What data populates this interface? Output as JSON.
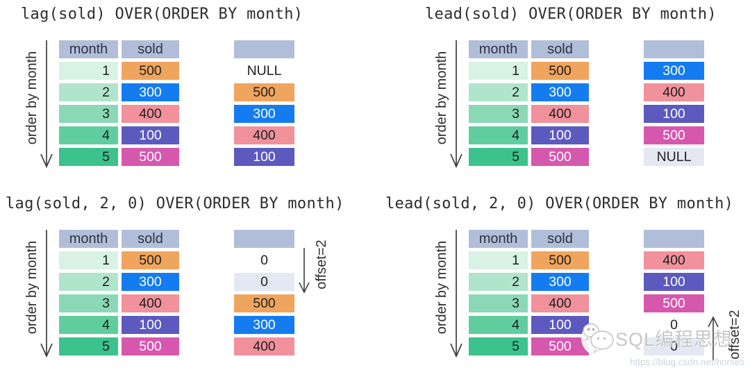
{
  "palette": {
    "header_bg": "#b1bed9",
    "text_dark": "#1f1f1f",
    "text_white": "#ffffff",
    "arrow": "#3d3d3d",
    "green_1": "#d8f2e4",
    "green_2": "#b0e5cb",
    "green_3": "#8ad8b5",
    "green_4": "#60cd9e",
    "green_5": "#3cc28c",
    "orange": "#f0a55e",
    "blue": "#147cf0",
    "pink": "#f0919c",
    "indigo": "#5c5abe",
    "magenta": "#d657ae",
    "null_bg": "#e3e8f3",
    "plain": "#ffffff"
  },
  "quadrants": [
    {
      "title": "lag(sold) OVER(ORDER BY month)",
      "order_label": "order by month",
      "headers": [
        "month",
        "sold"
      ],
      "rows": [
        {
          "month": "1",
          "month_bg": "green_1",
          "sold": "500",
          "sold_bg": "orange",
          "sold_fg": "dark"
        },
        {
          "month": "2",
          "month_bg": "green_2",
          "sold": "300",
          "sold_bg": "blue",
          "sold_fg": "light"
        },
        {
          "month": "3",
          "month_bg": "green_3",
          "sold": "400",
          "sold_bg": "pink",
          "sold_fg": "dark"
        },
        {
          "month": "4",
          "month_bg": "green_4",
          "sold": "100",
          "sold_bg": "indigo",
          "sold_fg": "light"
        },
        {
          "month": "5",
          "month_bg": "green_5",
          "sold": "500",
          "sold_bg": "magenta",
          "sold_fg": "light"
        }
      ],
      "result": [
        {
          "text": "NULL",
          "bg": "plain",
          "fg": "dark"
        },
        {
          "text": "500",
          "bg": "orange",
          "fg": "dark"
        },
        {
          "text": "300",
          "bg": "blue",
          "fg": "light"
        },
        {
          "text": "400",
          "bg": "pink",
          "fg": "dark"
        },
        {
          "text": "100",
          "bg": "indigo",
          "fg": "light"
        }
      ],
      "offset": null
    },
    {
      "title": "lead(sold) OVER(ORDER BY month)",
      "order_label": "order by month",
      "headers": [
        "month",
        "sold"
      ],
      "rows": [
        {
          "month": "1",
          "month_bg": "green_1",
          "sold": "500",
          "sold_bg": "orange",
          "sold_fg": "dark"
        },
        {
          "month": "2",
          "month_bg": "green_2",
          "sold": "300",
          "sold_bg": "blue",
          "sold_fg": "light"
        },
        {
          "month": "3",
          "month_bg": "green_3",
          "sold": "400",
          "sold_bg": "pink",
          "sold_fg": "dark"
        },
        {
          "month": "4",
          "month_bg": "green_4",
          "sold": "100",
          "sold_bg": "indigo",
          "sold_fg": "light"
        },
        {
          "month": "5",
          "month_bg": "green_5",
          "sold": "500",
          "sold_bg": "magenta",
          "sold_fg": "light"
        }
      ],
      "result": [
        {
          "text": "300",
          "bg": "blue",
          "fg": "light"
        },
        {
          "text": "400",
          "bg": "pink",
          "fg": "dark"
        },
        {
          "text": "100",
          "bg": "indigo",
          "fg": "light"
        },
        {
          "text": "500",
          "bg": "magenta",
          "fg": "light"
        },
        {
          "text": "NULL",
          "bg": "null_bg",
          "fg": "dark"
        }
      ],
      "offset": null
    },
    {
      "title": "lag(sold, 2, 0) OVER(ORDER BY month)",
      "order_label": "order by month",
      "headers": [
        "month",
        "sold"
      ],
      "rows": [
        {
          "month": "1",
          "month_bg": "green_1",
          "sold": "500",
          "sold_bg": "orange",
          "sold_fg": "dark"
        },
        {
          "month": "2",
          "month_bg": "green_2",
          "sold": "300",
          "sold_bg": "blue",
          "sold_fg": "light"
        },
        {
          "month": "3",
          "month_bg": "green_3",
          "sold": "400",
          "sold_bg": "pink",
          "sold_fg": "dark"
        },
        {
          "month": "4",
          "month_bg": "green_4",
          "sold": "100",
          "sold_bg": "indigo",
          "sold_fg": "light"
        },
        {
          "month": "5",
          "month_bg": "green_5",
          "sold": "500",
          "sold_bg": "magenta",
          "sold_fg": "light"
        }
      ],
      "result": [
        {
          "text": "0",
          "bg": "plain",
          "fg": "dark"
        },
        {
          "text": "0",
          "bg": "null_bg",
          "fg": "dark"
        },
        {
          "text": "500",
          "bg": "orange",
          "fg": "dark"
        },
        {
          "text": "300",
          "bg": "blue",
          "fg": "light"
        },
        {
          "text": "400",
          "bg": "pink",
          "fg": "dark"
        }
      ],
      "offset": {
        "label": "offset=2",
        "direction": "down"
      }
    },
    {
      "title": "lead(sold, 2, 0) OVER(ORDER BY month)",
      "order_label": "order by month",
      "headers": [
        "month",
        "sold"
      ],
      "rows": [
        {
          "month": "1",
          "month_bg": "green_1",
          "sold": "500",
          "sold_bg": "orange",
          "sold_fg": "dark"
        },
        {
          "month": "2",
          "month_bg": "green_2",
          "sold": "300",
          "sold_bg": "blue",
          "sold_fg": "light"
        },
        {
          "month": "3",
          "month_bg": "green_3",
          "sold": "400",
          "sold_bg": "pink",
          "sold_fg": "dark"
        },
        {
          "month": "4",
          "month_bg": "green_4",
          "sold": "100",
          "sold_bg": "indigo",
          "sold_fg": "light"
        },
        {
          "month": "5",
          "month_bg": "green_5",
          "sold": "500",
          "sold_bg": "magenta",
          "sold_fg": "light"
        }
      ],
      "result": [
        {
          "text": "400",
          "bg": "pink",
          "fg": "dark"
        },
        {
          "text": "100",
          "bg": "indigo",
          "fg": "light"
        },
        {
          "text": "500",
          "bg": "magenta",
          "fg": "light"
        },
        {
          "text": "0",
          "bg": "plain",
          "fg": "dark"
        },
        {
          "text": "0",
          "bg": "null_bg",
          "fg": "dark"
        }
      ],
      "offset": {
        "label": "offset=2",
        "direction": "up"
      }
    }
  ],
  "watermark": {
    "brand": "SQL编程思想",
    "url": "https://blog.csdn.net/horses",
    "icon": "wechat-icon"
  }
}
